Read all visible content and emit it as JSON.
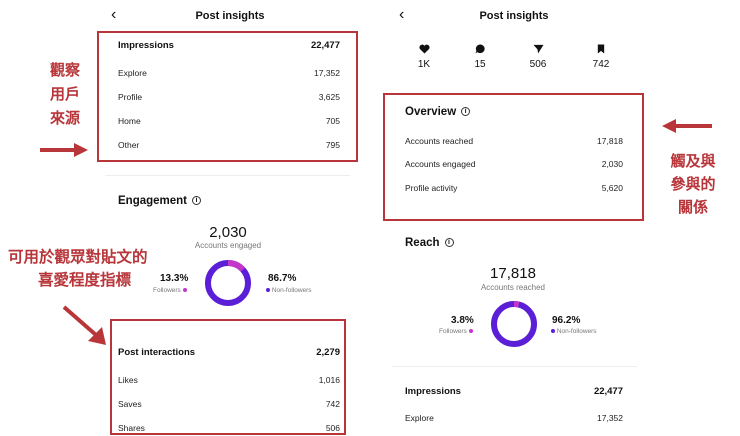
{
  "left": {
    "header": {
      "title": "Post insights"
    },
    "impressions": {
      "label": "Impressions",
      "value": "22,477",
      "rows": [
        {
          "label": "Explore",
          "value": "17,352"
        },
        {
          "label": "Profile",
          "value": "3,625"
        },
        {
          "label": "Home",
          "value": "705"
        },
        {
          "label": "Other",
          "value": "795"
        }
      ]
    },
    "engagement": {
      "title": "Engagement",
      "total": "2,030",
      "total_label": "Accounts engaged",
      "followers_pct": "13.3%",
      "followers_label": "Followers",
      "followers_fraction": 0.133,
      "nonfollowers_pct": "86.7%",
      "nonfollowers_label": "Non-followers"
    },
    "post_interactions": {
      "label": "Post interactions",
      "value": "2,279",
      "rows": [
        {
          "label": "Likes",
          "value": "1,016"
        },
        {
          "label": "Saves",
          "value": "742"
        },
        {
          "label": "Shares",
          "value": "506"
        }
      ]
    }
  },
  "right": {
    "header": {
      "title": "Post insights"
    },
    "stats": [
      {
        "icon": "heart-icon",
        "value": "1K"
      },
      {
        "icon": "comment-icon",
        "value": "15"
      },
      {
        "icon": "share-icon",
        "value": "506"
      },
      {
        "icon": "bookmark-icon",
        "value": "742"
      }
    ],
    "overview": {
      "title": "Overview",
      "rows": [
        {
          "label": "Accounts reached",
          "value": "17,818"
        },
        {
          "label": "Accounts engaged",
          "value": "2,030"
        },
        {
          "label": "Profile activity",
          "value": "5,620"
        }
      ]
    },
    "reach": {
      "title": "Reach",
      "total": "17,818",
      "total_label": "Accounts reached",
      "followers_pct": "3.8%",
      "followers_label": "Followers",
      "followers_fraction": 0.038,
      "nonfollowers_pct": "96.2%",
      "nonfollowers_label": "Non-followers"
    },
    "impressions": {
      "label": "Impressions",
      "value": "22,477",
      "rows": [
        {
          "label": "Explore",
          "value": "17,352"
        }
      ]
    }
  },
  "annotations": {
    "traffic_source": [
      "觀察",
      "用戶",
      "來源"
    ],
    "reach_engagement": [
      "觸及與",
      "參與的",
      "關係"
    ],
    "interaction_metric": [
      "可用於觀眾對貼文的",
      "喜愛程度指標"
    ]
  },
  "colors": {
    "annotation_red": "#b8363a",
    "donut_primary": "#5a1fd6",
    "donut_secondary": "#c237c9"
  }
}
